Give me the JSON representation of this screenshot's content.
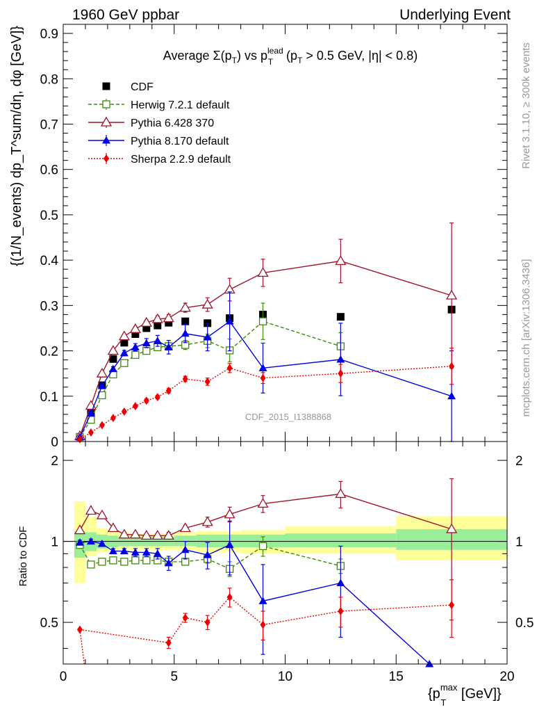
{
  "header": {
    "left": "1960 GeV ppbar",
    "right": "Underlying Event"
  },
  "side_labels": {
    "rivet": "Rivet 3.1.10, ≥ 300k events",
    "mcplots": "mcplots.cern.ch [arXiv:1306.3436]"
  },
  "watermark": "CDF_2015_I1388868",
  "chart_data": [
    {
      "type": "scatter",
      "panel": "main",
      "title": {
        "prefix": "Average ",
        "sigma": "Σ(p",
        "sub_t": "T",
        "mid": ") vs p",
        "sup": "lead",
        "sub_t2": "T",
        "suffix": " (p",
        "sub_t3": "T",
        "tail": " > 0.5 GeV, |η| < 0.8)"
      },
      "ylabel": "{(1/N_events) dp_T^sum/dη, dφ [GeV]}",
      "xlim": [
        0,
        20
      ],
      "ylim": [
        0,
        0.92
      ],
      "yticks": [
        0,
        0.1,
        0.2,
        0.3,
        0.4,
        0.5,
        0.6,
        0.7,
        0.8,
        0.9
      ],
      "ytick_labels": [
        "0",
        "0.1",
        "0.2",
        "0.3",
        "0.4",
        "0.5",
        "0.6",
        "0.7",
        "0.8",
        "0.9"
      ],
      "legend_position": "top-left",
      "series": [
        {
          "name": "CDF",
          "color": "#000000",
          "marker": "square-filled",
          "line": "none",
          "x": [
            0.75,
            1.25,
            1.75,
            2.25,
            2.75,
            3.25,
            3.75,
            4.25,
            4.75,
            5.5,
            6.5,
            7.5,
            9.0,
            12.5,
            17.5
          ],
          "y": [
            0.01,
            0.062,
            0.124,
            0.182,
            0.218,
            0.237,
            0.25,
            0.256,
            0.262,
            0.265,
            0.261,
            0.272,
            0.28,
            0.275,
            0.291
          ]
        },
        {
          "name": "Herwig 7.2.1 default",
          "color": "#3a8c00",
          "marker": "square-open",
          "line": "dashed",
          "x": [
            0.75,
            1.25,
            1.75,
            2.25,
            2.75,
            3.25,
            3.75,
            4.25,
            4.75,
            5.5,
            6.5,
            7.5,
            9.0,
            12.5
          ],
          "y": [
            0.01,
            0.048,
            0.102,
            0.148,
            0.173,
            0.191,
            0.2,
            0.208,
            0.21,
            0.213,
            0.222,
            0.201,
            0.265,
            0.21
          ],
          "err": [
            0.002,
            0.003,
            0.004,
            0.004,
            0.004,
            0.005,
            0.005,
            0.006,
            0.008,
            0.01,
            0.015,
            0.025,
            0.04,
            0.03
          ]
        },
        {
          "name": "Pythia 6.428 370",
          "color": "#a0142a",
          "marker": "triangle-open",
          "line": "solid",
          "x": [
            0.75,
            1.25,
            1.75,
            2.25,
            2.75,
            3.25,
            3.75,
            4.25,
            4.75,
            5.5,
            6.5,
            7.5,
            9.0,
            12.5,
            17.5
          ],
          "y": [
            0.012,
            0.079,
            0.15,
            0.2,
            0.232,
            0.248,
            0.262,
            0.27,
            0.272,
            0.295,
            0.302,
            0.335,
            0.372,
            0.398,
            0.322
          ],
          "err": [
            0.002,
            0.003,
            0.004,
            0.004,
            0.005,
            0.005,
            0.006,
            0.007,
            0.008,
            0.01,
            0.015,
            0.025,
            0.03,
            0.048,
            0.16
          ]
        },
        {
          "name": "Pythia 8.170 default",
          "color": "#0000e0",
          "marker": "triangle-filled",
          "line": "solid",
          "x": [
            0.75,
            1.25,
            1.75,
            2.25,
            2.75,
            3.25,
            3.75,
            4.25,
            4.75,
            5.5,
            6.5,
            7.5,
            9.0,
            12.5,
            17.5
          ],
          "y": [
            0.01,
            0.062,
            0.123,
            0.16,
            0.195,
            0.208,
            0.217,
            0.222,
            0.208,
            0.238,
            0.23,
            0.265,
            0.162,
            0.181,
            0.1
          ],
          "err": [
            0.002,
            0.003,
            0.004,
            0.005,
            0.006,
            0.008,
            0.01,
            0.012,
            0.015,
            0.02,
            0.03,
            0.065,
            0.055,
            0.08,
            0.1
          ]
        },
        {
          "name": "Sherpa 2.2.9 default",
          "color": "#ee0000",
          "marker": "diamond-filled",
          "line": "dotted",
          "x": [
            0.75,
            1.25,
            1.75,
            2.25,
            2.75,
            3.25,
            3.75,
            4.25,
            4.75,
            5.5,
            6.5,
            7.5,
            9.0,
            12.5,
            17.5
          ],
          "y": [
            0.005,
            0.02,
            0.036,
            0.052,
            0.066,
            0.078,
            0.09,
            0.098,
            0.112,
            0.138,
            0.132,
            0.162,
            0.14,
            0.15,
            0.166
          ],
          "err": [
            0.001,
            0.002,
            0.002,
            0.003,
            0.003,
            0.003,
            0.004,
            0.004,
            0.005,
            0.006,
            0.008,
            0.01,
            0.012,
            0.02,
            0.04
          ]
        }
      ]
    },
    {
      "type": "scatter",
      "panel": "ratio",
      "ylabel": "Ratio to CDF",
      "xlabel": {
        "open": "{p",
        "sup": "max",
        "sub": "T",
        "close": " [GeV]}"
      },
      "xlim": [
        0,
        20
      ],
      "ylim": [
        0.35,
        2.35
      ],
      "xticks": [
        0,
        5,
        10,
        15,
        20
      ],
      "xtick_labels": [
        "0",
        "5",
        "10",
        "15",
        "20"
      ],
      "yticks": [
        0.5,
        1,
        2
      ],
      "ytick_labels": [
        "0.5",
        "1",
        "2"
      ],
      "bands": [
        {
          "x0": 0.5,
          "x1": 1.0,
          "y1lo": 0.87,
          "y1hi": 1.09,
          "y2lo": 0.7,
          "y2hi": 1.41
        },
        {
          "x0": 1.0,
          "x1": 1.5,
          "y1lo": 0.92,
          "y1hi": 1.08,
          "y2lo": 0.88,
          "y2hi": 1.23
        },
        {
          "x0": 1.5,
          "x1": 2.0,
          "y1lo": 0.94,
          "y1hi": 1.06,
          "y2lo": 0.91,
          "y2hi": 1.12
        },
        {
          "x0": 2.0,
          "x1": 2.5,
          "y1lo": 0.95,
          "y1hi": 1.05,
          "y2lo": 0.92,
          "y2hi": 1.09
        },
        {
          "x0": 2.5,
          "x1": 3.0,
          "y1lo": 0.96,
          "y1hi": 1.04,
          "y2lo": 0.93,
          "y2hi": 1.08
        },
        {
          "x0": 3.0,
          "x1": 5.0,
          "y1lo": 0.96,
          "y1hi": 1.04,
          "y2lo": 0.93,
          "y2hi": 1.07
        },
        {
          "x0": 5.0,
          "x1": 6.0,
          "y1lo": 0.96,
          "y1hi": 1.05,
          "y2lo": 0.93,
          "y2hi": 1.08
        },
        {
          "x0": 6.0,
          "x1": 8.0,
          "y1lo": 0.95,
          "y1hi": 1.06,
          "y2lo": 0.91,
          "y2hi": 1.09
        },
        {
          "x0": 8.0,
          "x1": 10.0,
          "y1lo": 0.95,
          "y1hi": 1.06,
          "y2lo": 0.9,
          "y2hi": 1.1
        },
        {
          "x0": 10.0,
          "x1": 15.0,
          "y1lo": 0.95,
          "y1hi": 1.07,
          "y2lo": 0.9,
          "y2hi": 1.14
        },
        {
          "x0": 15.0,
          "x1": 20.0,
          "y1lo": 0.93,
          "y1hi": 1.11,
          "y2lo": 0.85,
          "y2hi": 1.24
        }
      ],
      "series": [
        {
          "name": "Herwig 7.2.1 default",
          "color": "#3a8c00",
          "marker": "square-open",
          "line": "dashed",
          "x": [
            0.75,
            1.25,
            1.75,
            2.25,
            2.75,
            3.25,
            3.75,
            4.25,
            4.75,
            5.5,
            6.5,
            7.5,
            9.0,
            12.5
          ],
          "y": [
            0.97,
            0.82,
            0.84,
            0.85,
            0.84,
            0.85,
            0.85,
            0.85,
            0.84,
            0.84,
            0.86,
            0.79,
            0.96,
            0.81
          ],
          "err": [
            0.02,
            0.01,
            0.01,
            0.01,
            0.01,
            0.01,
            0.01,
            0.01,
            0.02,
            0.02,
            0.03,
            0.05,
            0.08,
            0.05
          ]
        },
        {
          "name": "Pythia 6.428 370",
          "color": "#a0142a",
          "marker": "triangle-open",
          "line": "solid",
          "x": [
            0.75,
            1.25,
            1.75,
            2.25,
            2.75,
            3.25,
            3.75,
            4.25,
            4.75,
            5.5,
            6.5,
            7.5,
            9.0,
            12.5,
            17.5
          ],
          "y": [
            1.1,
            1.3,
            1.25,
            1.12,
            1.06,
            1.06,
            1.05,
            1.05,
            1.05,
            1.12,
            1.18,
            1.26,
            1.38,
            1.5,
            1.11
          ],
          "err": [
            0.02,
            0.02,
            0.02,
            0.02,
            0.02,
            0.02,
            0.02,
            0.02,
            0.03,
            0.03,
            0.05,
            0.08,
            0.1,
            0.17,
            0.6
          ]
        },
        {
          "name": "Pythia 8.170 default",
          "color": "#0000e0",
          "marker": "triangle-filled",
          "line": "solid",
          "x": [
            0.75,
            1.25,
            1.75,
            2.25,
            2.75,
            3.25,
            3.75,
            4.25,
            4.75,
            5.5,
            6.5,
            7.5,
            9.0,
            12.5,
            16.5
          ],
          "y": [
            0.99,
            1.0,
            0.98,
            0.92,
            0.92,
            0.91,
            0.91,
            0.9,
            0.83,
            0.93,
            0.89,
            0.97,
            0.6,
            0.7,
            0.35
          ],
          "err": [
            0.02,
            0.02,
            0.02,
            0.02,
            0.02,
            0.03,
            0.03,
            0.04,
            0.05,
            0.07,
            0.1,
            0.22,
            0.22,
            0.26,
            0
          ]
        },
        {
          "name": "Sherpa 2.2.9 default",
          "color": "#ee0000",
          "marker": "diamond-filled",
          "line": "dotted",
          "x": [
            0.75,
            4.75,
            5.5,
            6.5,
            7.5,
            9.0,
            12.5,
            17.5
          ],
          "y": [
            0.47,
            0.42,
            0.52,
            0.5,
            0.62,
            0.49,
            0.55,
            0.58
          ],
          "err": [
            0,
            0.02,
            0.02,
            0.03,
            0.05,
            0.06,
            0.07,
            0.14
          ],
          "tail": [
            [
              0.75,
              0.47
            ],
            [
              0.95,
              0.35
            ]
          ]
        }
      ]
    }
  ]
}
